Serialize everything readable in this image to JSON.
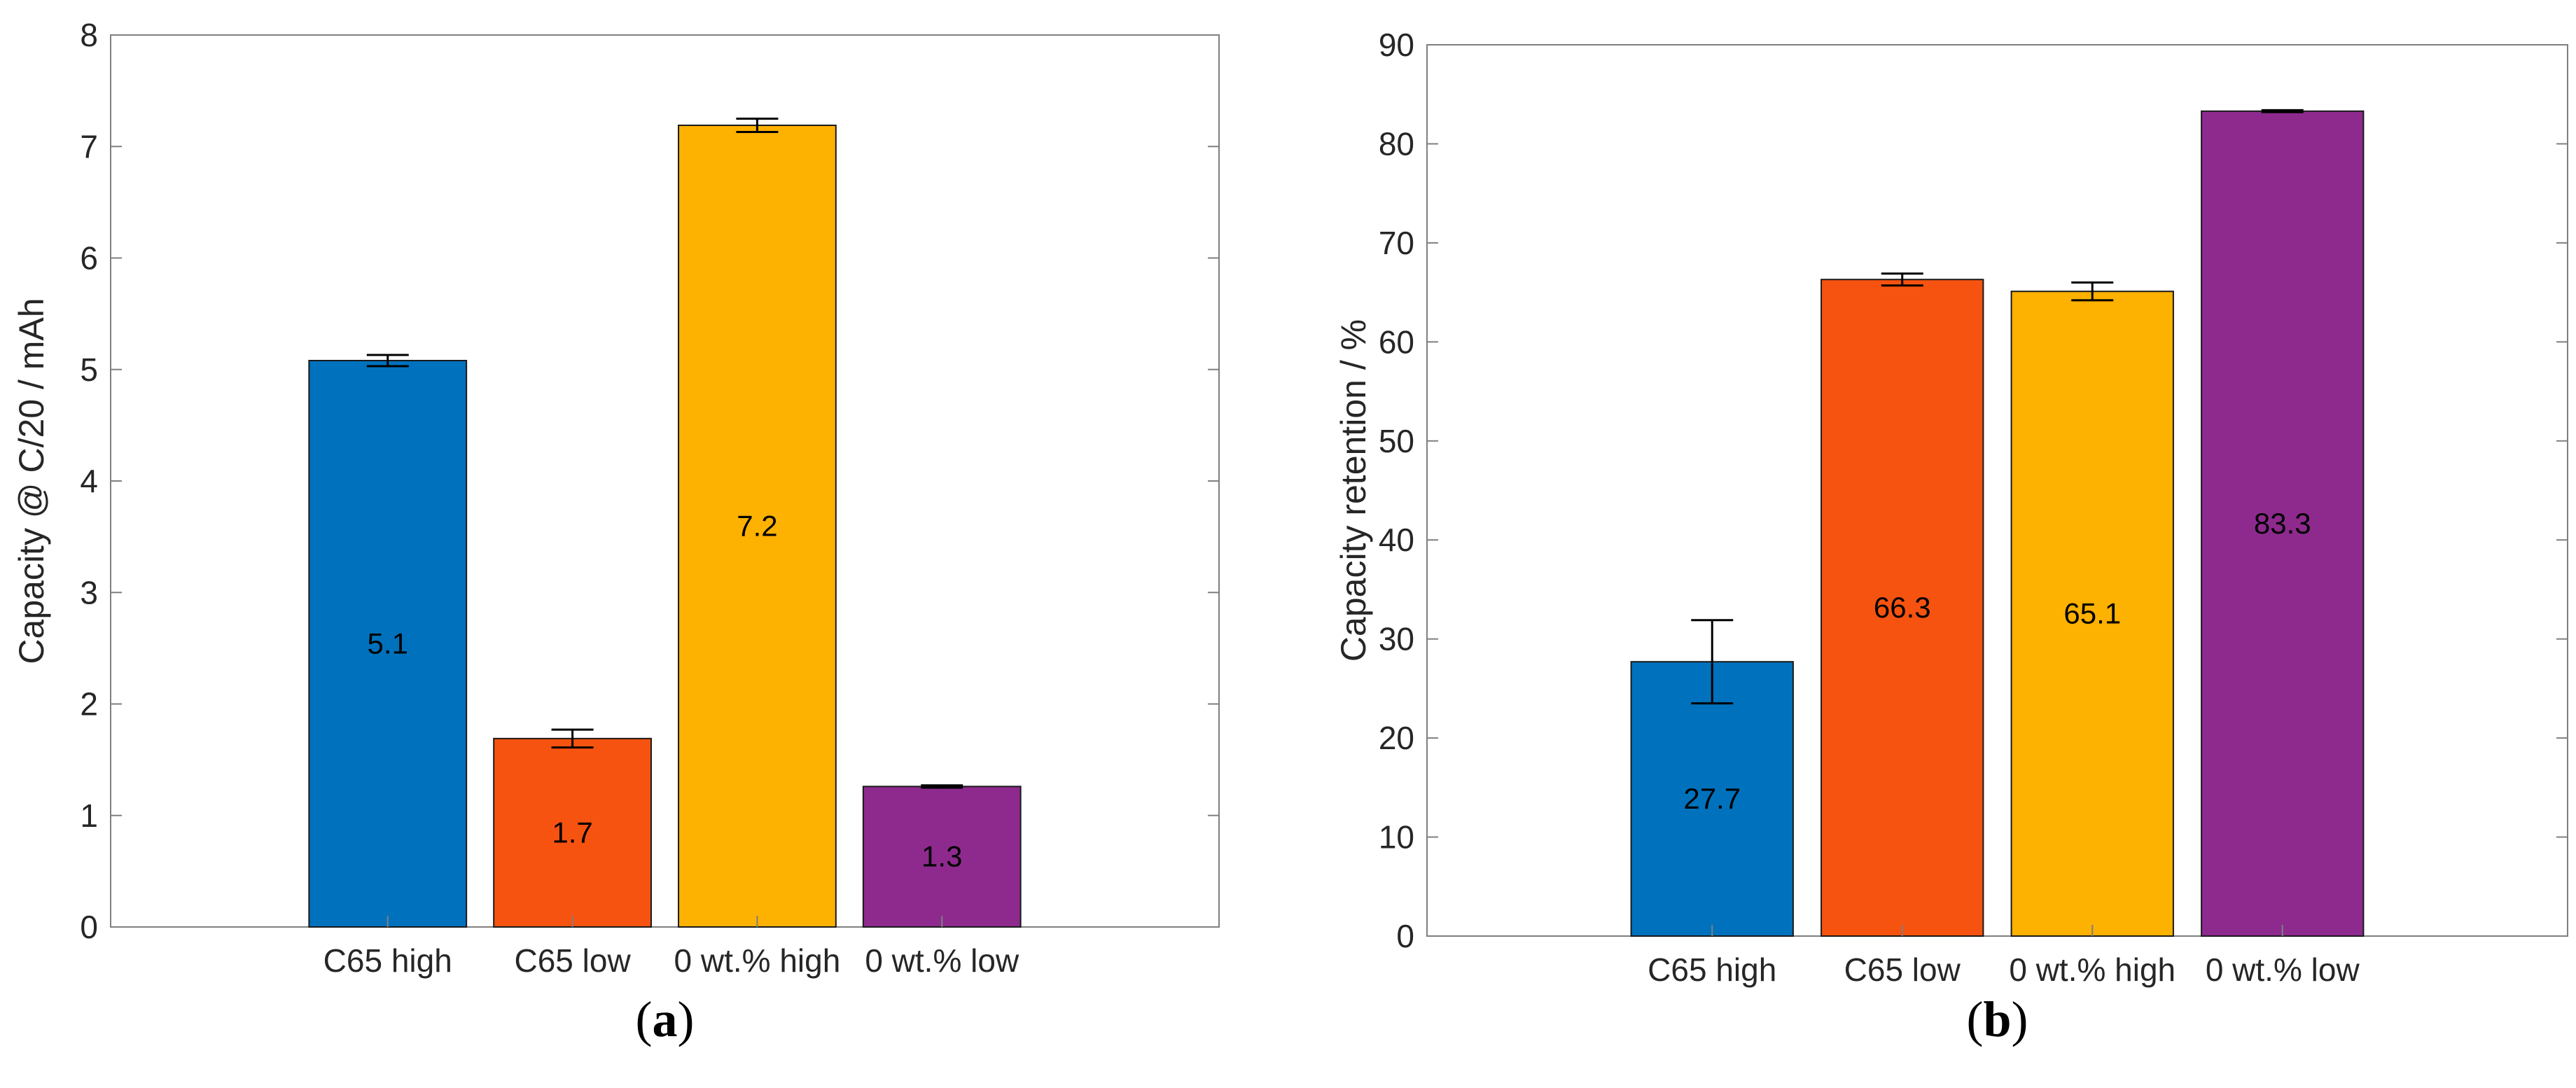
{
  "chart_data": [
    {
      "id": "a",
      "type": "bar",
      "panel_label": "(a)",
      "panel_letter": "a",
      "title": "",
      "xlabel": "",
      "ylabel": "Capacity @ C/20 / mAh",
      "ylim": [
        0,
        8
      ],
      "yticks": [
        0,
        1,
        2,
        3,
        4,
        5,
        6,
        7,
        8
      ],
      "grid": false,
      "categories": [
        "C65 high",
        "C65 low",
        "0 wt.% high",
        "0 wt.% low"
      ],
      "values": [
        5.08,
        1.69,
        7.19,
        1.26
      ],
      "errors": [
        0.05,
        0.08,
        0.06,
        0.01
      ],
      "data_labels": [
        "5.1",
        "1.7",
        "7.2",
        "1.3"
      ],
      "colors": [
        "#0072BD",
        "#F75310",
        "#FDB100",
        "#8E2A8E"
      ]
    },
    {
      "id": "b",
      "type": "bar",
      "panel_label": "(b)",
      "panel_letter": "b",
      "title": "",
      "xlabel": "",
      "ylabel": "Capacity retention / %",
      "ylim": [
        0,
        90
      ],
      "yticks": [
        0,
        10,
        20,
        30,
        40,
        50,
        60,
        70,
        80,
        90
      ],
      "grid": false,
      "categories": [
        "C65 high",
        "C65 low",
        "0 wt.% high",
        "0 wt.% low"
      ],
      "values": [
        27.7,
        66.3,
        65.1,
        83.3
      ],
      "errors": [
        4.2,
        0.6,
        0.9,
        0.1
      ],
      "data_labels": [
        "27.7",
        "66.3",
        "65.1",
        "83.3"
      ],
      "colors": [
        "#0072BD",
        "#F75310",
        "#FDB100",
        "#8E2A8E"
      ]
    }
  ]
}
